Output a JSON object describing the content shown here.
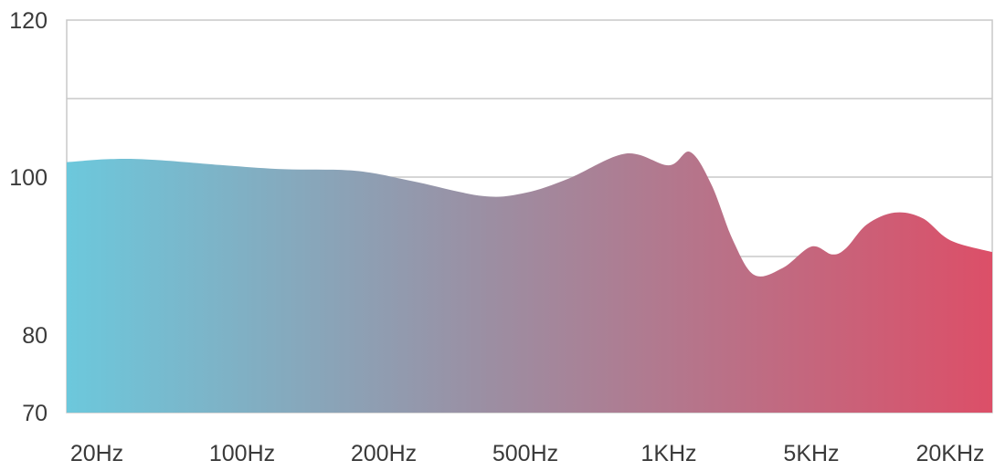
{
  "chart_data": {
    "type": "area",
    "title": "",
    "xlabel": "",
    "ylabel": "",
    "ylim": [
      70,
      120
    ],
    "y_ticks": [
      120,
      100,
      80,
      70
    ],
    "grid": true,
    "legend": "none",
    "x_tick_labels": [
      "20Hz",
      "100Hz",
      "200Hz",
      "500Hz",
      "1KHz",
      "5KHz",
      "20KHz"
    ],
    "x_tick_positions": [
      0,
      1,
      2,
      3,
      4,
      5,
      6
    ],
    "series": [
      {
        "x": [
          0,
          0.25,
          0.5,
          0.9,
          1.3,
          1.8,
          2.2,
          2.7,
          3.0,
          3.3,
          3.7,
          4.0,
          4.15,
          4.3,
          4.45,
          4.6,
          4.8,
          5.0,
          5.15,
          5.25,
          5.4,
          5.6,
          5.8,
          6.0,
          6.1
        ],
        "values": [
          101.9,
          102.3,
          102.2,
          101.5,
          101.0,
          100.8,
          99.5,
          97.6,
          98.0,
          99.8,
          103.0,
          101.5,
          103.2,
          99.0,
          92.0,
          87.6,
          88.5,
          91.2,
          90.2,
          91.0,
          94.0,
          95.5,
          94.8,
          92.0,
          90.5
        ]
      }
    ],
    "colors": {
      "gradient_start": "#6cc8dc",
      "gradient_mid": "#9b8fa3",
      "gradient_end": "#dc4f68",
      "gridline": "#c8c8c8",
      "frame": "#c8c8c8",
      "text": "#3a3a3a"
    }
  }
}
